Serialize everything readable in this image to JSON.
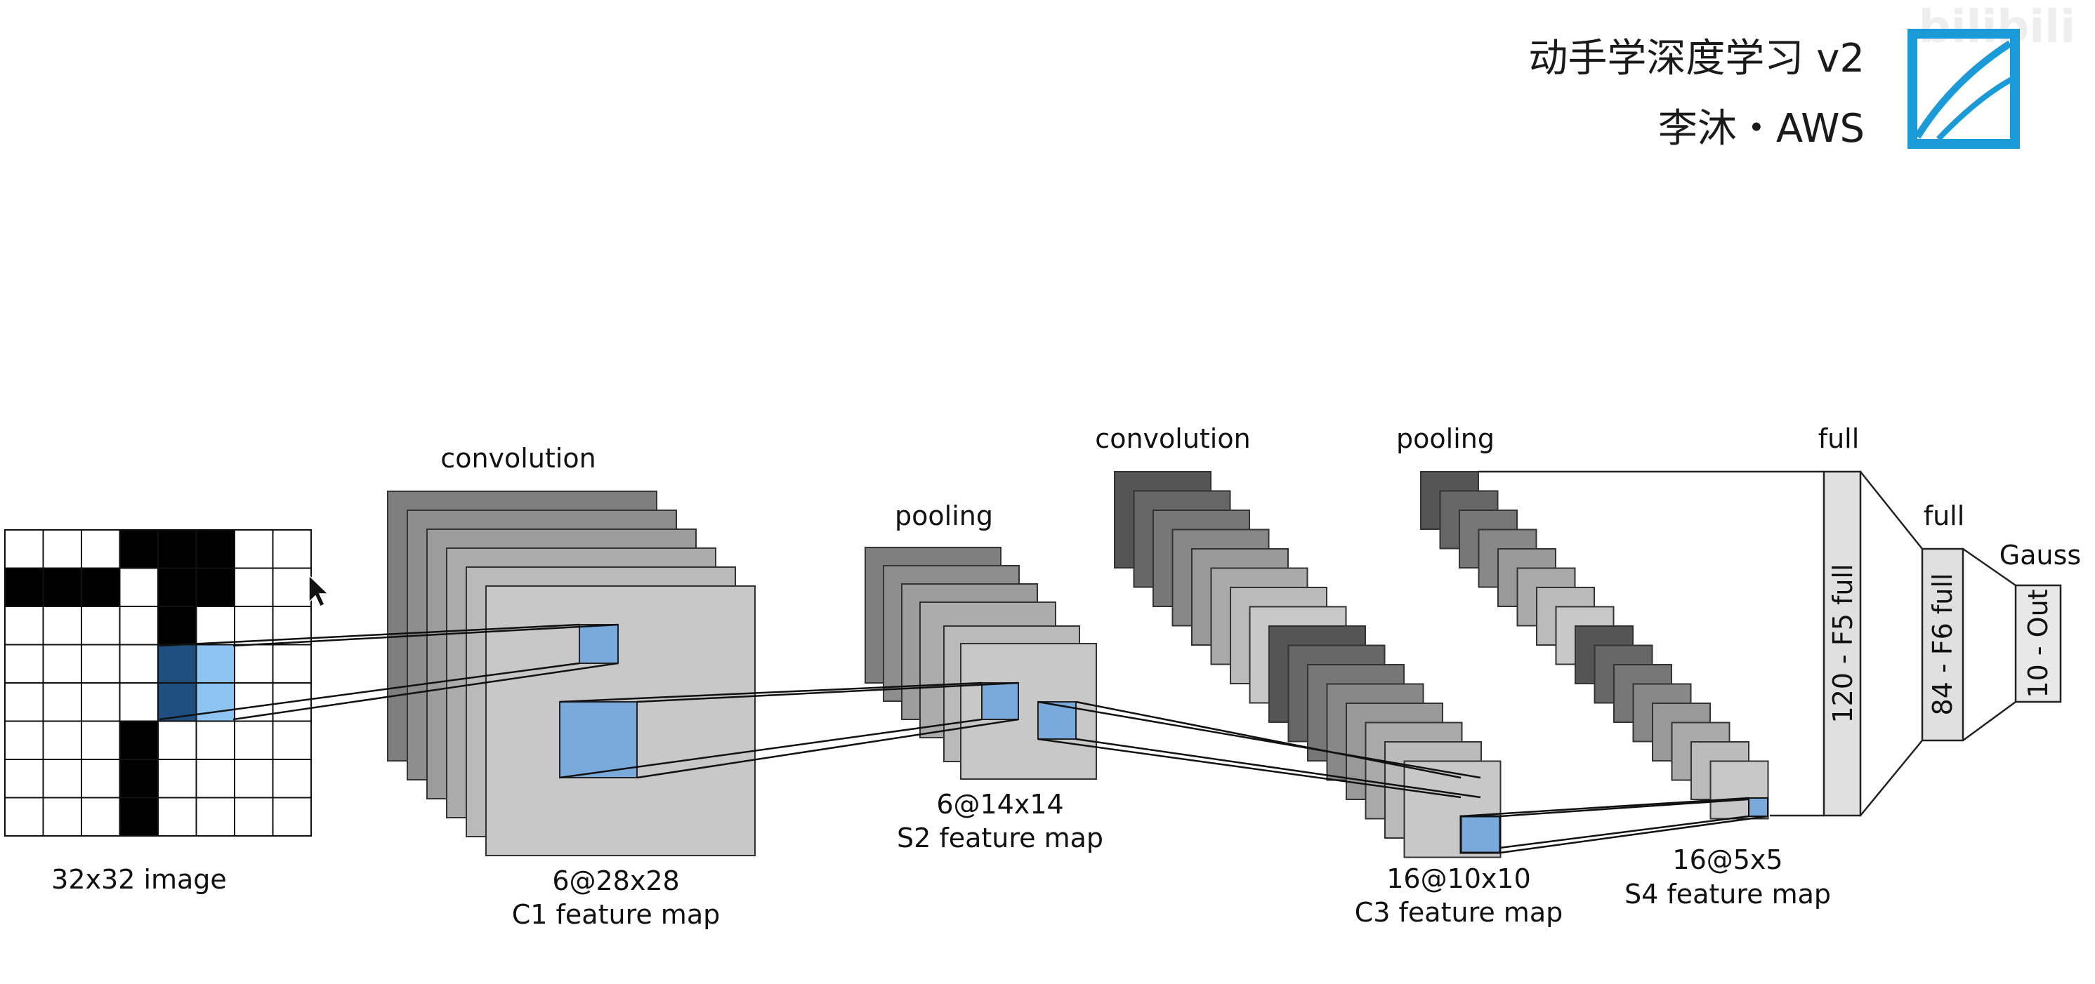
{
  "header": {
    "course_title": "动手学深度学习 v2",
    "author_line": "李沐・AWS",
    "logo_icon": "course-book-logo-icon",
    "watermark_text": "bilibili"
  },
  "diagram": {
    "input_label": "32x32 image",
    "stage_labels": {
      "conv1": "convolution",
      "pool1": "pooling",
      "conv2": "convolution",
      "pool2": "pooling",
      "full1": "full",
      "full2": "full",
      "gauss": "Gauss"
    },
    "c1": {
      "size": "6@28x28",
      "name": "C1 feature map"
    },
    "s2": {
      "size": "6@14x14",
      "name": "S2 feature map"
    },
    "c3": {
      "size": "16@10x10",
      "name": "C3 feature map"
    },
    "s4": {
      "size": "16@5x5",
      "name": "S4 feature map"
    },
    "f5_label": "120 - F5 full",
    "f6_label": "84 - F6 full",
    "out_label": "10 - Out"
  },
  "colors": {
    "accent_blue": "#7aa9dc",
    "dark_blue": "#1f4f7f",
    "light_blue": "#8ec4f2",
    "map_gray": "#c8c8c8",
    "logo_blue": "#1a9ad6"
  }
}
